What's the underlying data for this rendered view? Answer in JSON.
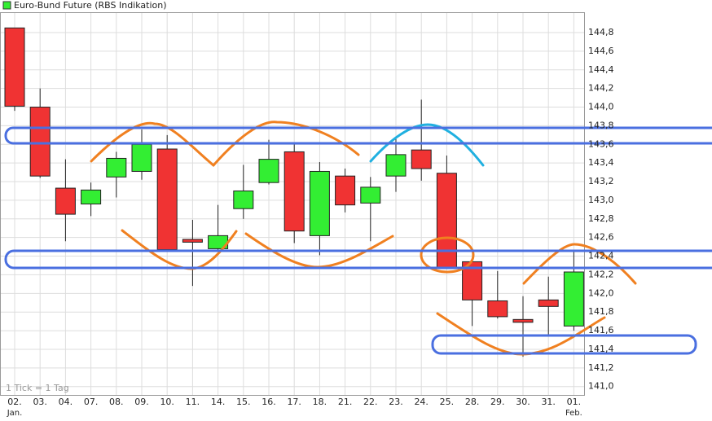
{
  "chart_data": {
    "type": "candlestick",
    "title": "Euro-Bund Future (RBS Indikation)",
    "note": "1 Tick = 1 Tag",
    "categories": [
      "02.",
      "03.",
      "04.",
      "07.",
      "08.",
      "09.",
      "10.",
      "11.",
      "14.",
      "15.",
      "16.",
      "17.",
      "18.",
      "21.",
      "22.",
      "23.",
      "24.",
      "25.",
      "28.",
      "29.",
      "30.",
      "31.",
      "01."
    ],
    "sublabels": [
      "Jan.",
      null,
      null,
      null,
      null,
      null,
      null,
      null,
      null,
      null,
      null,
      null,
      null,
      null,
      null,
      null,
      null,
      null,
      null,
      null,
      null,
      null,
      "Feb."
    ],
    "open": [
      144.85,
      144.0,
      143.13,
      142.96,
      143.25,
      143.31,
      143.55,
      142.58,
      142.48,
      142.91,
      143.19,
      143.52,
      142.62,
      143.26,
      142.97,
      143.26,
      143.54,
      143.29,
      142.34,
      141.92,
      141.72,
      141.93,
      141.65
    ],
    "high": [
      144.85,
      144.2,
      143.44,
      143.19,
      143.52,
      143.76,
      143.7,
      142.79,
      142.95,
      143.38,
      143.65,
      143.61,
      143.41,
      143.34,
      143.25,
      143.67,
      144.08,
      143.48,
      142.34,
      142.24,
      141.97,
      142.18,
      142.45
    ],
    "low": [
      143.96,
      143.24,
      142.56,
      142.83,
      143.03,
      143.22,
      142.47,
      142.08,
      142.46,
      142.8,
      143.17,
      142.54,
      142.41,
      142.87,
      142.56,
      143.09,
      143.21,
      142.27,
      141.65,
      141.73,
      141.32,
      141.54,
      141.6
    ],
    "close": [
      144.01,
      143.26,
      142.85,
      143.11,
      143.45,
      143.6,
      142.47,
      142.55,
      142.62,
      143.1,
      143.44,
      142.67,
      143.31,
      142.95,
      143.14,
      143.49,
      143.34,
      142.28,
      141.93,
      141.75,
      141.69,
      141.86,
      142.23
    ],
    "up_color": "#33ee33",
    "down_color": "#f03333",
    "ylim": [
      140.91,
      145.01
    ],
    "yticks": [
      {
        "value": 141.0,
        "label": "141,0"
      },
      {
        "value": 141.2,
        "label": "141,2"
      },
      {
        "value": 141.4,
        "label": "141,4"
      },
      {
        "value": 141.6,
        "label": "141,6"
      },
      {
        "value": 141.8,
        "label": "141,8"
      },
      {
        "value": 142.0,
        "label": "142,0"
      },
      {
        "value": 142.2,
        "label": "142,2"
      },
      {
        "value": 142.4,
        "label": "142,4"
      },
      {
        "value": 142.6,
        "label": "142,6"
      },
      {
        "value": 142.8,
        "label": "142,8"
      },
      {
        "value": 143.0,
        "label": "143,0"
      },
      {
        "value": 143.2,
        "label": "143,2"
      },
      {
        "value": 143.4,
        "label": "143,4"
      },
      {
        "value": 143.6,
        "label": "143,6"
      },
      {
        "value": 143.8,
        "label": "143,8"
      },
      {
        "value": 144.0,
        "label": "144,0"
      },
      {
        "value": 144.2,
        "label": "144,2"
      },
      {
        "value": 144.4,
        "label": "144,4"
      },
      {
        "value": 144.6,
        "label": "144,6"
      },
      {
        "value": 144.8,
        "label": "144,8"
      }
    ],
    "grid": true
  }
}
